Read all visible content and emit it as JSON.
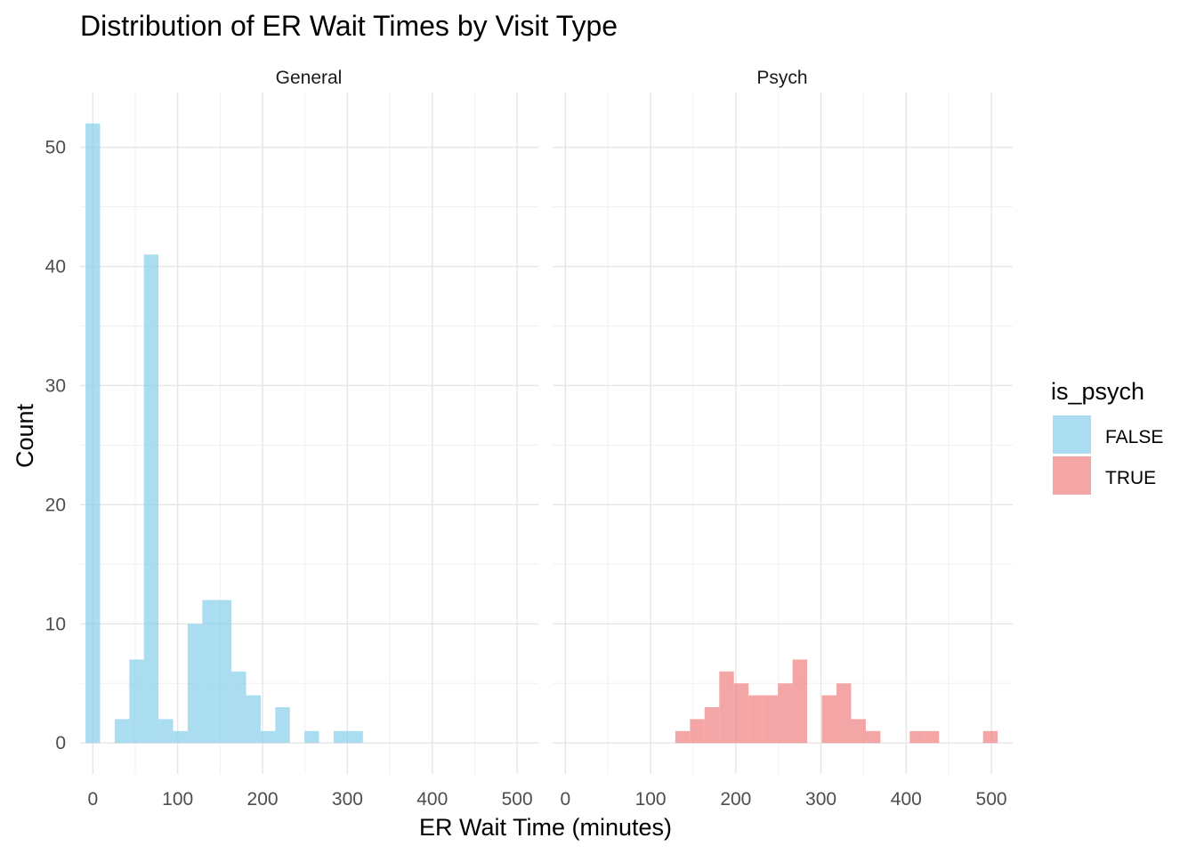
{
  "chart_data": {
    "type": "histogram",
    "title": "Distribution of ER Wait Times by Visit Type",
    "xlabel": "ER Wait Time (minutes)",
    "ylabel": "Count",
    "xlim": [
      -15,
      525
    ],
    "ylim": [
      -2.6,
      54.6
    ],
    "x_ticks": [
      0,
      100,
      200,
      300,
      400,
      500
    ],
    "y_ticks": [
      0,
      10,
      20,
      30,
      40,
      50
    ],
    "bin_width": 17.2,
    "grid": true,
    "legend": {
      "title": "is_psych",
      "position": "right",
      "entries": [
        {
          "label": "FALSE",
          "color": "#87CEEB"
        },
        {
          "label": "TRUE",
          "color": "#F08080"
        }
      ]
    },
    "panels": [
      {
        "strip": "General",
        "series": "FALSE",
        "color": "#87CEEB",
        "bins": [
          {
            "x": 0,
            "count": 52
          },
          {
            "x": 34.4,
            "count": 2
          },
          {
            "x": 51.6,
            "count": 7
          },
          {
            "x": 68.8,
            "count": 41
          },
          {
            "x": 86.0,
            "count": 2
          },
          {
            "x": 103.2,
            "count": 1
          },
          {
            "x": 120.4,
            "count": 10
          },
          {
            "x": 137.6,
            "count": 12
          },
          {
            "x": 154.8,
            "count": 12
          },
          {
            "x": 172.0,
            "count": 6
          },
          {
            "x": 189.2,
            "count": 4
          },
          {
            "x": 206.4,
            "count": 1
          },
          {
            "x": 223.6,
            "count": 3
          },
          {
            "x": 258.0,
            "count": 1
          },
          {
            "x": 292.4,
            "count": 1
          },
          {
            "x": 309.6,
            "count": 1
          }
        ]
      },
      {
        "strip": "Psych",
        "series": "TRUE",
        "color": "#F08080",
        "bins": [
          {
            "x": 137.6,
            "count": 1
          },
          {
            "x": 154.8,
            "count": 2
          },
          {
            "x": 172.0,
            "count": 3
          },
          {
            "x": 189.2,
            "count": 6
          },
          {
            "x": 206.4,
            "count": 5
          },
          {
            "x": 223.6,
            "count": 4
          },
          {
            "x": 240.8,
            "count": 4
          },
          {
            "x": 258.0,
            "count": 5
          },
          {
            "x": 275.2,
            "count": 7
          },
          {
            "x": 309.6,
            "count": 4
          },
          {
            "x": 326.8,
            "count": 5
          },
          {
            "x": 344.0,
            "count": 2
          },
          {
            "x": 361.2,
            "count": 1
          },
          {
            "x": 412.8,
            "count": 1
          },
          {
            "x": 430.0,
            "count": 1
          },
          {
            "x": 498.8,
            "count": 1
          }
        ]
      }
    ]
  }
}
